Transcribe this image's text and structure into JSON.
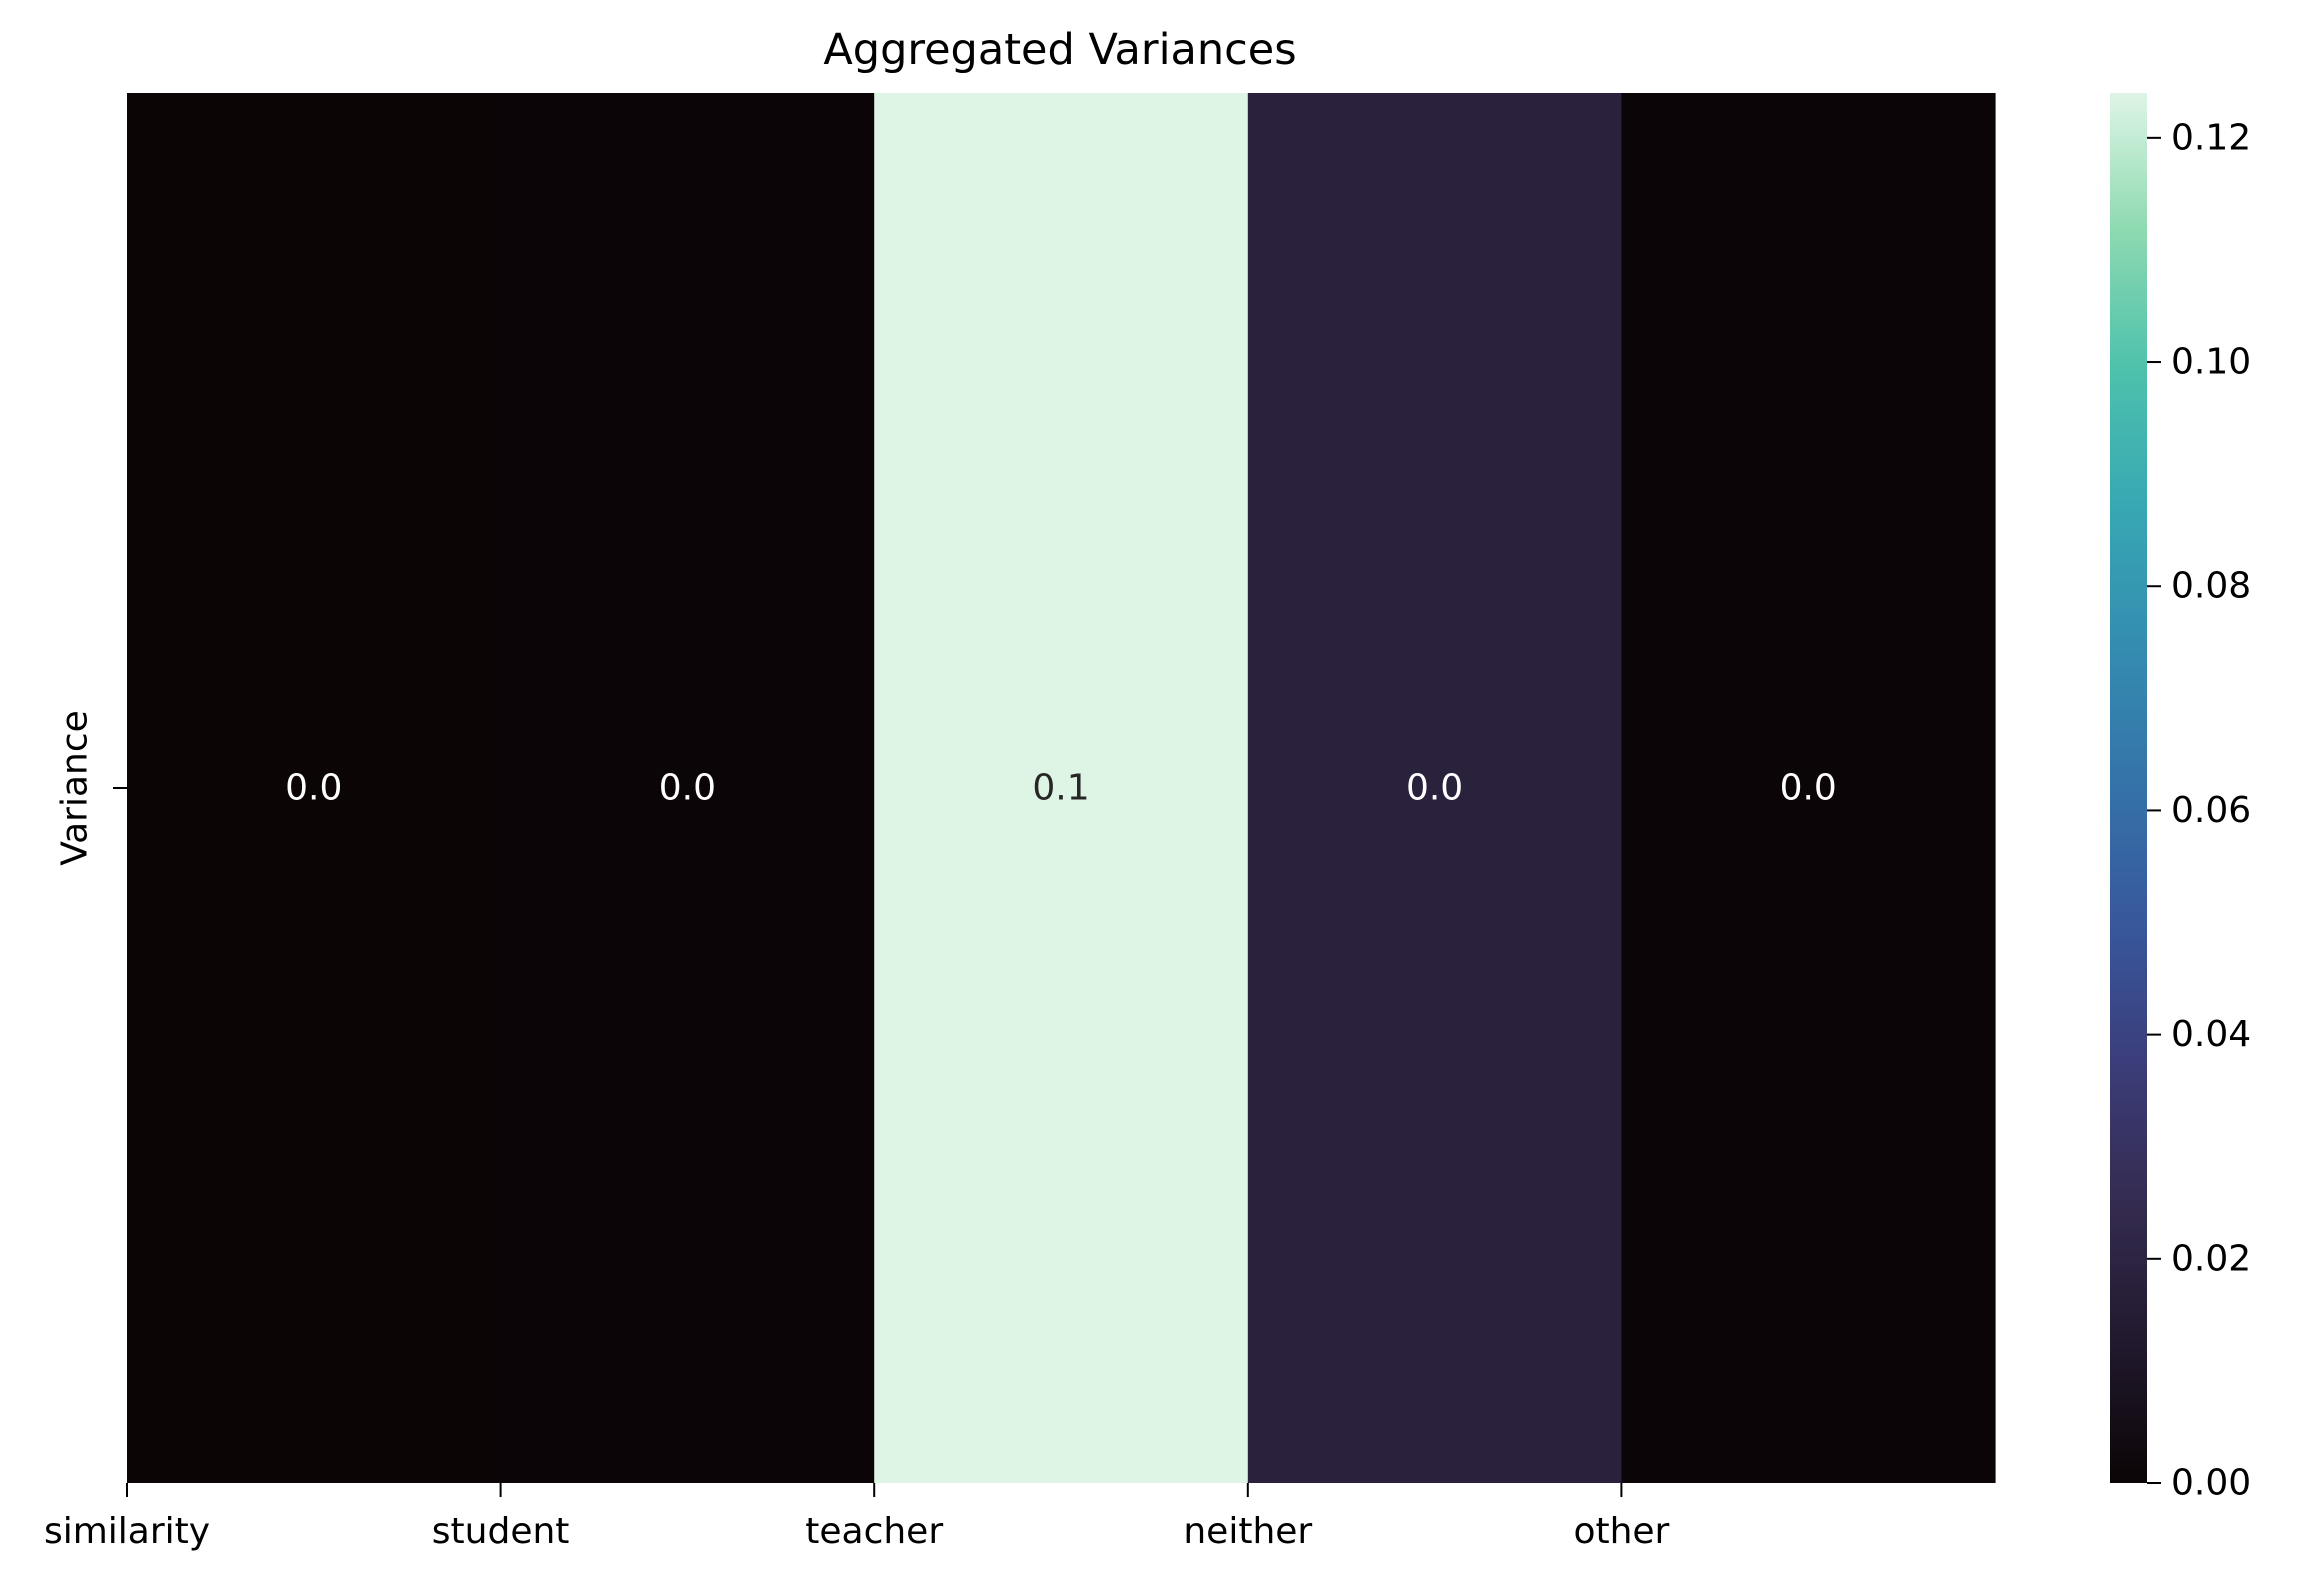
{
  "chart_data": {
    "type": "heatmap",
    "title": "Aggregated Variances",
    "xlabel": "",
    "ylabel": "",
    "x_categories": [
      "similarity",
      "student",
      "teacher",
      "neither",
      "other"
    ],
    "y_categories": [
      "Variance"
    ],
    "values": [
      [
        0.0003,
        0.0005,
        0.124,
        0.018,
        0.0005
      ]
    ],
    "cell_labels": [
      [
        "0.0",
        "0.0",
        "0.1",
        "0.0",
        "0.0"
      ]
    ],
    "colormap": "mako",
    "colorbar": {
      "range": [
        0,
        0.124
      ],
      "ticks": [
        0.0,
        0.02,
        0.04,
        0.06,
        0.08,
        0.1,
        0.12
      ],
      "tick_labels": [
        "0.00",
        "0.02",
        "0.04",
        "0.06",
        "0.08",
        "0.10",
        "0.12"
      ]
    },
    "grid": false,
    "legend": "colorbar-right"
  }
}
